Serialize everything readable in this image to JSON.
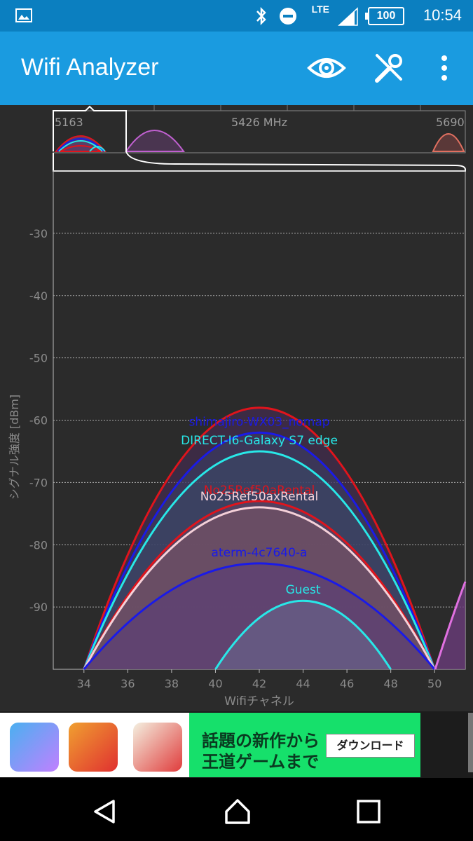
{
  "status_bar": {
    "time": "10:54",
    "battery": "100",
    "network": "LTE"
  },
  "app_bar": {
    "title": "Wifi Analyzer",
    "icons": [
      "eye-icon",
      "tools-icon",
      "overflow-menu-icon"
    ]
  },
  "overview": {
    "freq_left": "5163",
    "freq_mid": "5426 MHz",
    "freq_right": "5690"
  },
  "chart_data": {
    "type": "area",
    "xlabel": "Wifiチャネル",
    "ylabel": "シグナル強度 [dBm]",
    "x_ticks": [
      "34",
      "36",
      "38",
      "40",
      "42",
      "44",
      "46",
      "48",
      "50"
    ],
    "y_ticks": [
      "-30",
      "-40",
      "-50",
      "-60",
      "-70",
      "-80",
      "-90"
    ],
    "xlim": [
      32.6,
      51.4
    ],
    "ylim": [
      -100,
      -20
    ],
    "series": [
      {
        "name": "",
        "center": 42,
        "start": 34,
        "end": 50,
        "peak": -58,
        "color": "#e0141c"
      },
      {
        "name": "shimajiro-WX03_nomap",
        "center": 42,
        "start": 34,
        "end": 50,
        "peak": -62,
        "color": "#1a1ae8"
      },
      {
        "name": "DIRECT-I6-Galaxy S7 edge",
        "center": 42,
        "start": 34,
        "end": 50,
        "peak": -65,
        "color": "#28e8e8"
      },
      {
        "name": "No25Ref50aRental",
        "center": 42,
        "start": 34,
        "end": 50,
        "peak": -73,
        "color": "#e0141c"
      },
      {
        "name": "No25Ref50axRental",
        "center": 42,
        "start": 34,
        "end": 50,
        "peak": -74,
        "color": "#f4d0d8"
      },
      {
        "name": "aterm-4c7640-a",
        "center": 42,
        "start": 34,
        "end": 50,
        "peak": -83,
        "color": "#1a1ae8"
      },
      {
        "name": "Guest",
        "center": 44,
        "start": 40,
        "end": 48,
        "peak": -89,
        "color": "#28e8e8"
      }
    ]
  },
  "ad": {
    "line1": "話題の新作から",
    "line2": "王道ゲームまで",
    "download_label": "ダウンロード"
  }
}
